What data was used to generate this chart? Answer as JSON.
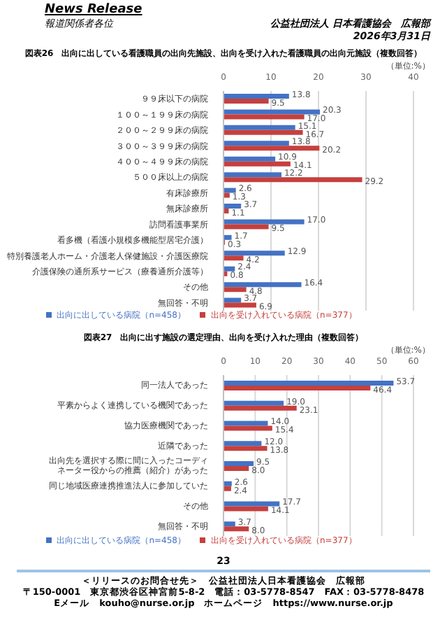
{
  "chart_data": [
    {
      "type": "bar",
      "orientation": "horizontal",
      "title": "図表26　出向に出している看護職員の出向先施設、出向を受け入れた看護職員の出向元施設（複数回答）",
      "annotations": [
        "News Release",
        "報道関係者各位",
        "公益社団法人 日本看護協会　広報部",
        "2026年3月31日",
        "（単位:%）"
      ],
      "categories": [
        "９９床以下の病院",
        "１００～１９９床の病院",
        "２００～２９９床の病院",
        "３００～３９９床の病院",
        "４００～４９９床の病院",
        "５００床以上の病院",
        "有床診療所",
        "無床診療所",
        "訪問看護事業所",
        "看多機（看護小規模多機能型居宅介護）",
        "特別養護老人ホーム・介護老人保健施設・介護医療院",
        "介護保険の通所系サービス（療養通所介護等）",
        "その他",
        "無回答・不明"
      ],
      "series": [
        {
          "name": "出向に出している病院（n=458）",
          "color": "#4472c4",
          "values": [
            13.8,
            20.3,
            15.1,
            13.8,
            10.9,
            12.2,
            2.6,
            3.7,
            17.0,
            1.7,
            12.9,
            2.4,
            16.4,
            3.7
          ],
          "value_labels": [
            "13.8",
            "20.3",
            "15.1",
            "13.8",
            "10.9",
            "12.2",
            "2.6",
            "3.7",
            "17.0",
            "1.7",
            "12.9",
            "2.4",
            "16.4",
            "3.7"
          ]
        },
        {
          "name": "出向を受け入れている病院（n=377）",
          "color": "#c5403e",
          "values": [
            9.5,
            17.0,
            16.7,
            20.2,
            14.1,
            29.2,
            1.3,
            1.1,
            9.5,
            0.3,
            4.2,
            0.8,
            4.8,
            6.9
          ],
          "value_labels": [
            "9.5",
            "17.0",
            "16.7",
            "20.2",
            "14.1",
            "29.2",
            "1.3",
            "1.1",
            "9.5",
            "0.3",
            "4.2",
            "0.8",
            "4.8",
            "6.9"
          ]
        }
      ],
      "xlim": [
        0,
        40
      ],
      "xticks": [
        0,
        10,
        20,
        30,
        40
      ],
      "grid": "x",
      "legend": "bottom"
    },
    {
      "type": "bar",
      "orientation": "horizontal",
      "title": "図表27　出向に出す施設の選定理由、出向を受け入れた理由（複数回答）",
      "annotations": [
        "（単位:%）",
        "23",
        "＜リリースのお問合せ先＞　公益社団法人日本看護協会　広報部",
        "〒150-0001　東京都渋谷区神宮前5-8-2　電話：03-5778-8547　FAX：03-5778-8478",
        "Eメール　kouho@nurse.or.jp　ホームページ　https://www.nurse.or.jp"
      ],
      "categories": [
        "同一法人であった",
        "平素からよく連携している機関であった",
        "協力医療機関であった",
        "近隣であった",
        "出向先を選択する際に間に入ったコーディネーター役からの推薦（紹介）があった",
        "同じ地域医療連携推進法人に参加していた",
        "その他",
        "無回答・不明"
      ],
      "series": [
        {
          "name": "出向に出している病院（n=458）",
          "color": "#4472c4",
          "values": [
            53.7,
            19.0,
            14.0,
            12.0,
            9.5,
            2.6,
            17.7,
            3.7
          ],
          "value_labels": [
            "53.7",
            "19.0",
            "14.0",
            "12.0",
            "9.5",
            "2.6",
            "17.7",
            "3.7"
          ]
        },
        {
          "name": "出向を受け入れている病院（n=377）",
          "color": "#c5403e",
          "values": [
            46.4,
            23.1,
            15.4,
            13.8,
            8.0,
            2.4,
            14.1,
            8.0
          ],
          "value_labels": [
            "46.4",
            "23.1",
            "15.4",
            "13.8",
            "8.0",
            "2.4",
            "14.1",
            "8.0"
          ]
        }
      ],
      "xlim": [
        0,
        60
      ],
      "xticks": [
        0,
        10,
        20,
        30,
        40,
        50,
        60
      ],
      "grid": "x",
      "legend": "bottom"
    }
  ]
}
